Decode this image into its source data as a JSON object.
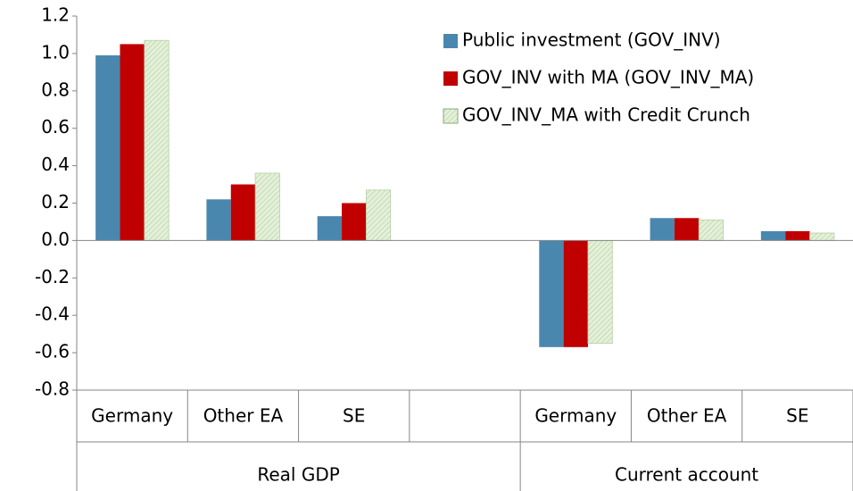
{
  "chart_data": {
    "type": "bar",
    "categories": [
      "Germany",
      "Other EA",
      "SE",
      null,
      "Germany",
      "Other EA",
      "SE"
    ],
    "groups": [
      "Real GDP",
      "Current account"
    ],
    "series": [
      {
        "name": "Public investment (GOV_INV)",
        "color": "#4a87ae",
        "values": [
          0.99,
          0.22,
          0.13,
          null,
          -0.57,
          0.12,
          0.05
        ]
      },
      {
        "name": "GOV_INV with MA (GOV_INV_MA)",
        "color": "#c00000",
        "values": [
          1.05,
          0.3,
          0.2,
          null,
          -0.57,
          0.12,
          0.05
        ]
      },
      {
        "name": "GOV_INV_MA with Credit Crunch",
        "color": "#e4f0da",
        "values": [
          1.07,
          0.36,
          0.27,
          null,
          -0.55,
          0.11,
          0.04
        ]
      }
    ],
    "ylim": [
      -0.8,
      1.2
    ],
    "yticks": [
      -0.8,
      -0.6,
      -0.4,
      -0.2,
      {
        "value": 0,
        "label": "0.0"
      },
      0.2,
      0.4,
      0.6,
      0.8,
      {
        "value": 1,
        "label": "1.0"
      },
      1.2
    ],
    "grid": false,
    "legend": "top-right"
  }
}
